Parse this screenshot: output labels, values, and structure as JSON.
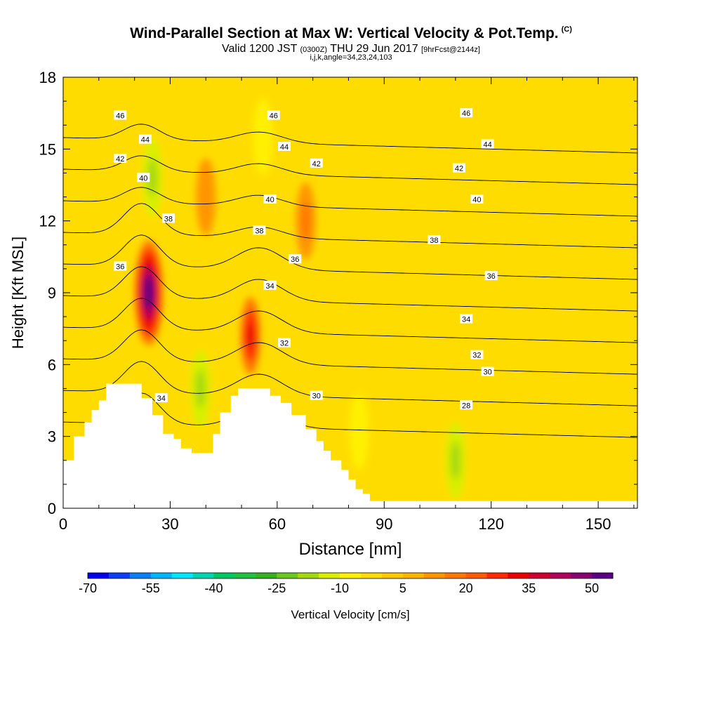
{
  "title": "Wind-Parallel Section at Max W: Vertical Velocity & Pot.Temp.",
  "copyright_mark": "(C)",
  "subtitle": {
    "valid": "Valid 1200 JST",
    "utc": "(0300Z)",
    "date": "THU 29 Jun 2017",
    "forecast": "[9hrFcst@2144z]"
  },
  "indices": "i,j,k,angle=34,23,24,103",
  "chart_data": {
    "type": "heatmap",
    "xlabel": "Distance [nm]",
    "ylabel": "Height [Kft MSL]",
    "xlim": [
      0,
      161
    ],
    "ylim": [
      0,
      18
    ],
    "x_ticks": [
      0,
      30,
      60,
      90,
      120,
      150
    ],
    "y_ticks": [
      0,
      3,
      6,
      9,
      12,
      15,
      18
    ],
    "colorbar": {
      "label": "Vertical Velocity [cm/s]",
      "tick_labels": [
        "-70",
        "-55",
        "-40",
        "-25",
        "-10",
        "5",
        "20",
        "35",
        "50"
      ],
      "colors": [
        "#0000ee",
        "#0a3ff5",
        "#0a7ff5",
        "#00b4ff",
        "#00e6ff",
        "#00d4b0",
        "#00c860",
        "#22c040",
        "#36b020",
        "#6cc820",
        "#a6d810",
        "#d8f000",
        "#fff000",
        "#ffdc00",
        "#ffc800",
        "#ffb400",
        "#ff9600",
        "#ff7800",
        "#ff5a00",
        "#ff2a00",
        "#e60000",
        "#cc0030",
        "#b0005a",
        "#880070",
        "#5a0082"
      ]
    },
    "theta_contours": {
      "units": "K",
      "levels": [
        28,
        30,
        32,
        34,
        36,
        38,
        40,
        42,
        44,
        46
      ],
      "label_positions": [
        {
          "level": 46,
          "x": 16,
          "y": 16.4
        },
        {
          "level": 46,
          "x": 59,
          "y": 16.4
        },
        {
          "level": 46,
          "x": 113,
          "y": 16.5
        },
        {
          "level": 44,
          "x": 23,
          "y": 15.4
        },
        {
          "level": 44,
          "x": 62,
          "y": 15.1
        },
        {
          "level": 44,
          "x": 119,
          "y": 15.2
        },
        {
          "level": 42,
          "x": 16,
          "y": 14.6
        },
        {
          "level": 42,
          "x": 71,
          "y": 14.4
        },
        {
          "level": 42,
          "x": 111,
          "y": 14.2
        },
        {
          "level": 40,
          "x": 22.5,
          "y": 13.8
        },
        {
          "level": 40,
          "x": 58,
          "y": 12.9
        },
        {
          "level": 40,
          "x": 116,
          "y": 12.9
        },
        {
          "level": 38,
          "x": 29.5,
          "y": 12.1
        },
        {
          "level": 38,
          "x": 55,
          "y": 11.6
        },
        {
          "level": 38,
          "x": 104,
          "y": 11.2
        },
        {
          "level": 36,
          "x": 16,
          "y": 10.1
        },
        {
          "level": 36,
          "x": 65,
          "y": 10.4
        },
        {
          "level": 36,
          "x": 120,
          "y": 9.7
        },
        {
          "level": 34,
          "x": 58,
          "y": 9.3
        },
        {
          "level": 34,
          "x": 113,
          "y": 7.9
        },
        {
          "level": 34,
          "x": 27.5,
          "y": 4.6
        },
        {
          "level": 32,
          "x": 62,
          "y": 6.9
        },
        {
          "level": 32,
          "x": 116,
          "y": 6.4
        },
        {
          "level": 30,
          "x": 119,
          "y": 5.7
        },
        {
          "level": 30,
          "x": 71,
          "y": 4.7
        },
        {
          "level": 28,
          "x": 113,
          "y": 4.3
        }
      ]
    },
    "w_cells": [
      {
        "x": 24,
        "y": 9.0,
        "w": 58
      },
      {
        "x": 52.5,
        "y": 7.2,
        "w": 32
      },
      {
        "x": 38.5,
        "y": 5.0,
        "w": -22
      },
      {
        "x": 25,
        "y": 13.8,
        "w": -18
      },
      {
        "x": 110,
        "y": 2.0,
        "w": -18
      },
      {
        "x": 83,
        "y": 3.2,
        "w": -12
      },
      {
        "x": 56,
        "y": 15.5,
        "w": -10
      },
      {
        "x": 68,
        "y": 12.0,
        "w": 15
      },
      {
        "x": 40,
        "y": 13.0,
        "w": 12
      }
    ],
    "terrain_kft": [
      [
        0,
        2
      ],
      [
        3,
        2
      ],
      [
        3,
        3
      ],
      [
        6,
        3
      ],
      [
        6,
        3.6
      ],
      [
        8,
        3.6
      ],
      [
        8,
        4.1
      ],
      [
        10,
        4.1
      ],
      [
        10,
        4.5
      ],
      [
        12,
        4.5
      ],
      [
        12,
        5.2
      ],
      [
        22,
        5.2
      ],
      [
        22,
        4.6
      ],
      [
        25,
        4.6
      ],
      [
        25,
        3.9
      ],
      [
        28,
        3.9
      ],
      [
        28,
        3.1
      ],
      [
        31,
        3.1
      ],
      [
        31,
        2.9
      ],
      [
        33,
        2.9
      ],
      [
        33,
        2.5
      ],
      [
        36,
        2.5
      ],
      [
        36,
        2.3
      ],
      [
        42,
        2.3
      ],
      [
        42,
        3.1
      ],
      [
        44,
        3.1
      ],
      [
        44,
        4.0
      ],
      [
        47,
        4.0
      ],
      [
        47,
        4.7
      ],
      [
        49,
        4.7
      ],
      [
        49,
        5.0
      ],
      [
        58,
        5.0
      ],
      [
        58,
        4.7
      ],
      [
        61,
        4.7
      ],
      [
        61,
        4.4
      ],
      [
        64,
        4.4
      ],
      [
        64,
        3.9
      ],
      [
        68,
        3.9
      ],
      [
        68,
        3.3
      ],
      [
        71,
        3.3
      ],
      [
        71,
        2.8
      ],
      [
        73,
        2.8
      ],
      [
        73,
        2.4
      ],
      [
        75,
        2.4
      ],
      [
        75,
        2.0
      ],
      [
        78,
        2.0
      ],
      [
        78,
        1.6
      ],
      [
        80,
        1.6
      ],
      [
        80,
        1.2
      ],
      [
        82,
        1.2
      ],
      [
        82,
        0.8
      ],
      [
        84,
        0.8
      ],
      [
        84,
        0.6
      ],
      [
        86,
        0.6
      ],
      [
        86,
        0.3
      ],
      [
        161,
        0.3
      ],
      [
        161,
        0
      ]
    ]
  }
}
